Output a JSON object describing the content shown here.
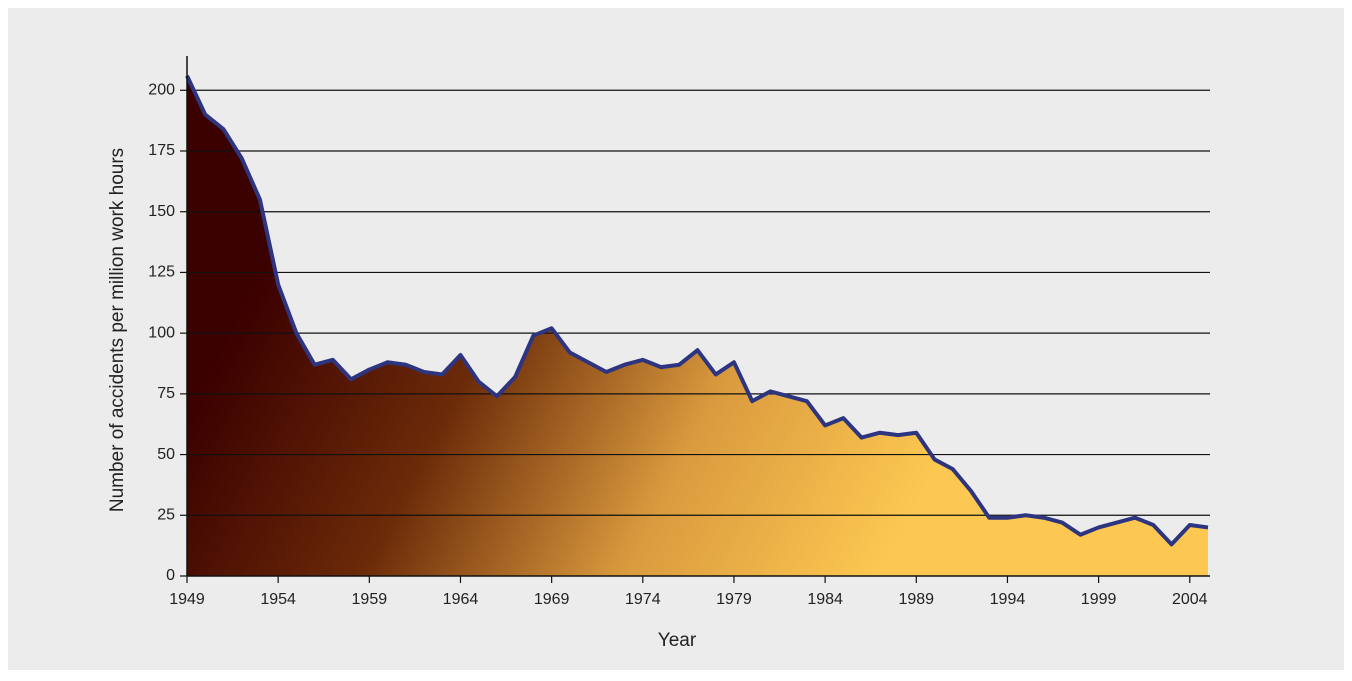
{
  "chart_data": {
    "type": "area",
    "x_label": "Year",
    "y_label": "Number of accidents per million work hours",
    "x": [
      1949,
      1950,
      1951,
      1952,
      1953,
      1954,
      1955,
      1956,
      1957,
      1958,
      1959,
      1960,
      1961,
      1962,
      1963,
      1964,
      1965,
      1966,
      1967,
      1968,
      1969,
      1970,
      1971,
      1972,
      1973,
      1974,
      1975,
      1976,
      1977,
      1978,
      1979,
      1980,
      1981,
      1982,
      1983,
      1984,
      1985,
      1986,
      1987,
      1988,
      1989,
      1990,
      1991,
      1992,
      1993,
      1994,
      1995,
      1996,
      1997,
      1998,
      1999,
      2000,
      2001,
      2002,
      2003,
      2004,
      2005
    ],
    "values": [
      206,
      190,
      184,
      172,
      155,
      120,
      100,
      87,
      89,
      81,
      85,
      88,
      87,
      84,
      83,
      91,
      80,
      74,
      82,
      99,
      102,
      92,
      88,
      84,
      87,
      89,
      86,
      87,
      93,
      83,
      88,
      72,
      76,
      74,
      72,
      62,
      65,
      57,
      59,
      58,
      59,
      48,
      44,
      35,
      24,
      24,
      25,
      24,
      22,
      17,
      20,
      22,
      24,
      21,
      13,
      21,
      20
    ],
    "color": "#2e3580",
    "fill_gradient": [
      "#3b0000",
      "#6b2a08",
      "#d99a3e",
      "#fdc851"
    ],
    "xlim": [
      1949,
      2005
    ],
    "ylim": [
      0,
      210
    ],
    "xticks": [
      1949,
      1954,
      1959,
      1964,
      1969,
      1974,
      1979,
      1984,
      1989,
      1994,
      1999,
      2004
    ],
    "yticks": [
      0,
      25,
      50,
      75,
      100,
      125,
      150,
      175,
      200
    ],
    "grid": true
  }
}
